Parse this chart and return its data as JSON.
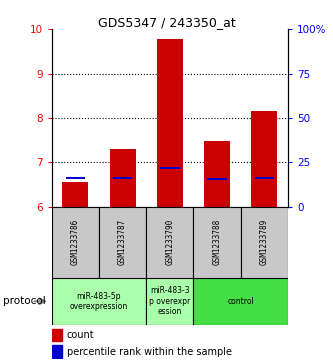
{
  "title": "GDS5347 / 243350_at",
  "samples": [
    "GSM1233786",
    "GSM1233787",
    "GSM1233790",
    "GSM1233788",
    "GSM1233789"
  ],
  "red_values": [
    6.55,
    7.3,
    9.78,
    7.48,
    8.15
  ],
  "blue_values": [
    6.65,
    6.65,
    6.87,
    6.63,
    6.65
  ],
  "ylim_left": [
    6,
    10
  ],
  "ylim_right": [
    0,
    100
  ],
  "yticks_left": [
    6,
    7,
    8,
    9,
    10
  ],
  "yticks_right": [
    0,
    25,
    50,
    75,
    100
  ],
  "ytick_labels_right": [
    "0",
    "25",
    "50",
    "75",
    "100%"
  ],
  "dotted_lines": [
    7,
    8,
    9
  ],
  "bar_width": 0.55,
  "red_color": "#CC0000",
  "blue_color": "#0000CC",
  "bar_bottom": 6.0,
  "sample_box_color": "#C8C8C8",
  "group_boundaries": [
    {
      "start": 0,
      "end": 1,
      "label": "miR-483-5p\noverexpression",
      "color": "#AAFFAA"
    },
    {
      "start": 2,
      "end": 2,
      "label": "miR-483-3\np overexpr\nession",
      "color": "#AAFFAA"
    },
    {
      "start": 3,
      "end": 4,
      "label": "control",
      "color": "#44DD44"
    }
  ],
  "protocol_label": "protocol",
  "legend_count_label": "count",
  "legend_percentile_label": "percentile rank within the sample"
}
